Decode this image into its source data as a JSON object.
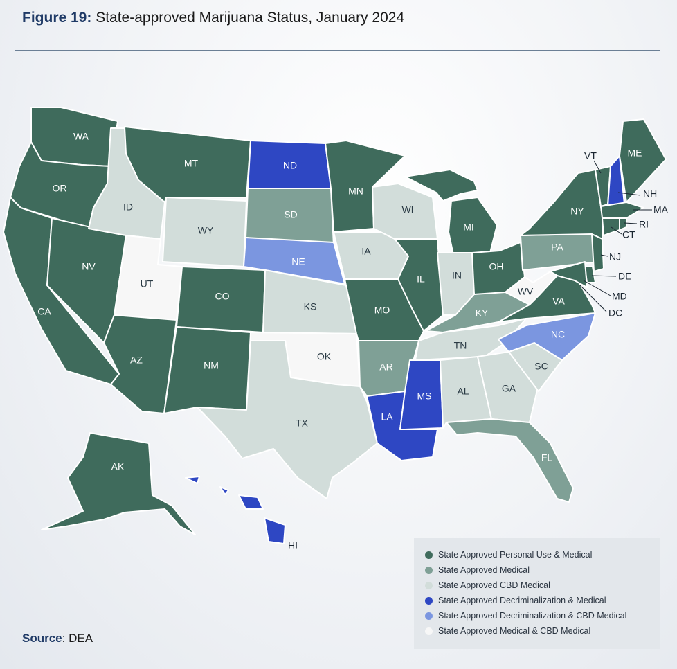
{
  "header": {
    "figure_label": "Figure 19:",
    "title": "State-approved Marijuana Status, January 2024"
  },
  "colors": {
    "personal_use_medical": "#3f6b5c",
    "medical": "#7fa096",
    "cbd_medical": "#d2ddda",
    "decrim_medical": "#2e47c3",
    "decrim_cbd_medical": "#7b96e0",
    "medical_cbd_medical": "#f7f7f7"
  },
  "legend": {
    "items": [
      {
        "label": "State Approved Personal Use & Medical",
        "color": "#3f6b5c"
      },
      {
        "label": "State Approved Medical",
        "color": "#7fa096"
      },
      {
        "label": "State Approved CBD Medical",
        "color": "#d2ddda"
      },
      {
        "label": "State Approved Decriminalization & Medical",
        "color": "#2e47c3"
      },
      {
        "label": "State Approved Decriminalization & CBD Medical",
        "color": "#7b96e0"
      },
      {
        "label": "State Approved Medical & CBD Medical",
        "color": "#f7f7f7"
      }
    ]
  },
  "states": {
    "WA": {
      "label": "WA",
      "status": "State Approved Personal Use & Medical"
    },
    "OR": {
      "label": "OR",
      "status": "State Approved Personal Use & Medical"
    },
    "CA": {
      "label": "CA",
      "status": "State Approved Personal Use & Medical"
    },
    "NV": {
      "label": "NV",
      "status": "State Approved Personal Use & Medical"
    },
    "ID": {
      "label": "ID",
      "status": "State Approved CBD Medical"
    },
    "MT": {
      "label": "MT",
      "status": "State Approved Personal Use & Medical"
    },
    "WY": {
      "label": "WY",
      "status": "State Approved CBD Medical"
    },
    "UT": {
      "label": "UT",
      "status": "State Approved Medical & CBD Medical"
    },
    "AZ": {
      "label": "AZ",
      "status": "State Approved Personal Use & Medical"
    },
    "CO": {
      "label": "CO",
      "status": "State Approved Personal Use & Medical"
    },
    "NM": {
      "label": "NM",
      "status": "State Approved Personal Use & Medical"
    },
    "ND": {
      "label": "ND",
      "status": "State Approved Decriminalization & Medical"
    },
    "SD": {
      "label": "SD",
      "status": "State Approved Medical"
    },
    "NE": {
      "label": "NE",
      "status": "State Approved Decriminalization & CBD Medical"
    },
    "KS": {
      "label": "KS",
      "status": "State Approved CBD Medical"
    },
    "OK": {
      "label": "OK",
      "status": "State Approved Medical & CBD Medical"
    },
    "TX": {
      "label": "TX",
      "status": "State Approved CBD Medical"
    },
    "MN": {
      "label": "MN",
      "status": "State Approved Personal Use & Medical"
    },
    "IA": {
      "label": "IA",
      "status": "State Approved CBD Medical"
    },
    "MO": {
      "label": "MO",
      "status": "State Approved Personal Use & Medical"
    },
    "AR": {
      "label": "AR",
      "status": "State Approved Medical"
    },
    "LA": {
      "label": "LA",
      "status": "State Approved Decriminalization & Medical"
    },
    "WI": {
      "label": "WI",
      "status": "State Approved CBD Medical"
    },
    "IL": {
      "label": "IL",
      "status": "State Approved Personal Use & Medical"
    },
    "MS": {
      "label": "MS",
      "status": "State Approved Decriminalization & Medical"
    },
    "MI": {
      "label": "MI",
      "status": "State Approved Personal Use & Medical"
    },
    "IN": {
      "label": "IN",
      "status": "State Approved CBD Medical"
    },
    "KY": {
      "label": "KY",
      "status": "State Approved Medical"
    },
    "TN": {
      "label": "TN",
      "status": "State Approved CBD Medical"
    },
    "AL": {
      "label": "AL",
      "status": "State Approved CBD Medical"
    },
    "OH": {
      "label": "OH",
      "status": "State Approved Personal Use & Medical"
    },
    "GA": {
      "label": "GA",
      "status": "State Approved CBD Medical"
    },
    "FL": {
      "label": "FL",
      "status": "State Approved Medical"
    },
    "SC": {
      "label": "SC",
      "status": "State Approved CBD Medical"
    },
    "NC": {
      "label": "NC",
      "status": "State Approved Decriminalization & CBD Medical"
    },
    "VA": {
      "label": "VA",
      "status": "State Approved Personal Use & Medical"
    },
    "WV": {
      "label": "WV",
      "status": "State Approved Medical & CBD Medical"
    },
    "PA": {
      "label": "PA",
      "status": "State Approved Medical"
    },
    "NY": {
      "label": "NY",
      "status": "State Approved Personal Use & Medical"
    },
    "VT": {
      "label": "VT",
      "status": "State Approved Personal Use & Medical"
    },
    "NH": {
      "label": "NH",
      "status": "State Approved Decriminalization & Medical"
    },
    "ME": {
      "label": "ME",
      "status": "State Approved Personal Use & Medical"
    },
    "MA": {
      "label": "MA",
      "status": "State Approved Personal Use & Medical"
    },
    "RI": {
      "label": "RI",
      "status": "State Approved Personal Use & Medical"
    },
    "CT": {
      "label": "CT",
      "status": "State Approved Personal Use & Medical"
    },
    "NJ": {
      "label": "NJ",
      "status": "State Approved Personal Use & Medical"
    },
    "DE": {
      "label": "DE",
      "status": "State Approved Personal Use & Medical"
    },
    "MD": {
      "label": "MD",
      "status": "State Approved Personal Use & Medical"
    },
    "DC": {
      "label": "DC",
      "status": "State Approved Personal Use & Medical"
    },
    "AK": {
      "label": "AK",
      "status": "State Approved Personal Use & Medical"
    },
    "HI": {
      "label": "HI",
      "status": "State Approved Decriminalization & Medical"
    }
  },
  "footer": {
    "source_label": "Source",
    "source_value": ": DEA"
  }
}
